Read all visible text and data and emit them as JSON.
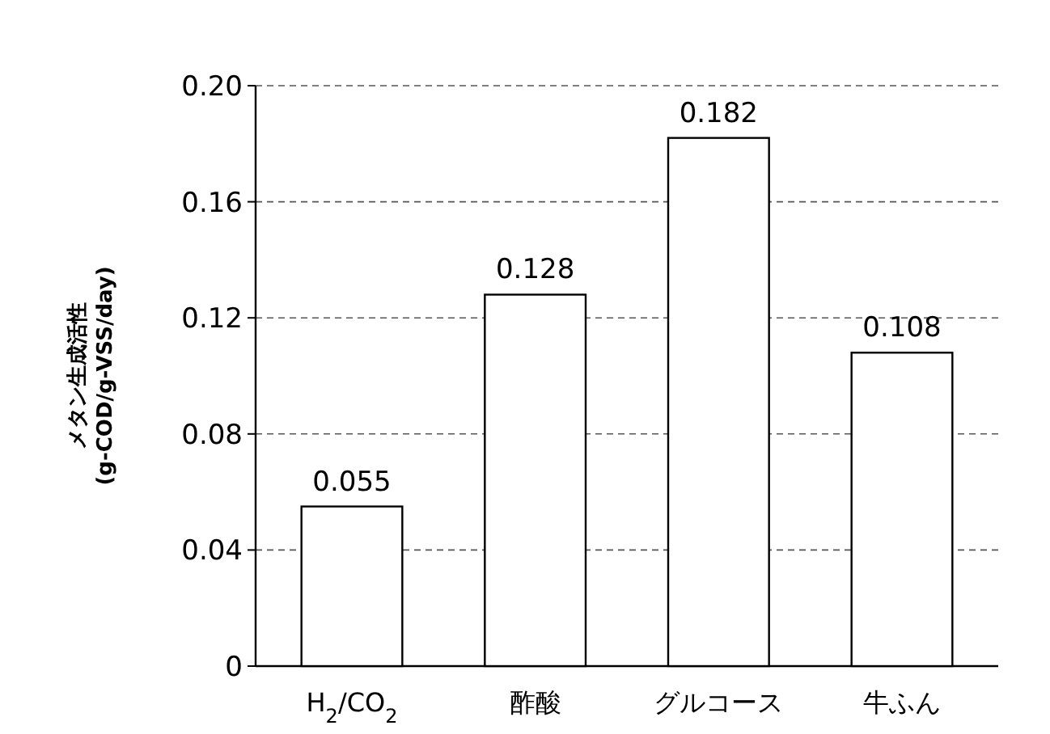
{
  "chart_data": {
    "type": "bar",
    "ylabel": "メタン生成活性\n(g-COD/g-VSS/day)",
    "categories": [
      "H$_{2}$/CO$_{2}$",
      "酢酸",
      "グルコース",
      "牛ふん"
    ],
    "values": [
      0.055,
      0.128,
      0.182,
      0.108
    ],
    "color": "#ffffff",
    "ylim": [
      0,
      0.2
    ],
    "yticks": [
      0,
      0.04,
      0.08,
      0.12,
      0.16,
      {
        "value": 0.2,
        "label": "0.20"
      }
    ],
    "grid": "y",
    "data_labels": true
  }
}
